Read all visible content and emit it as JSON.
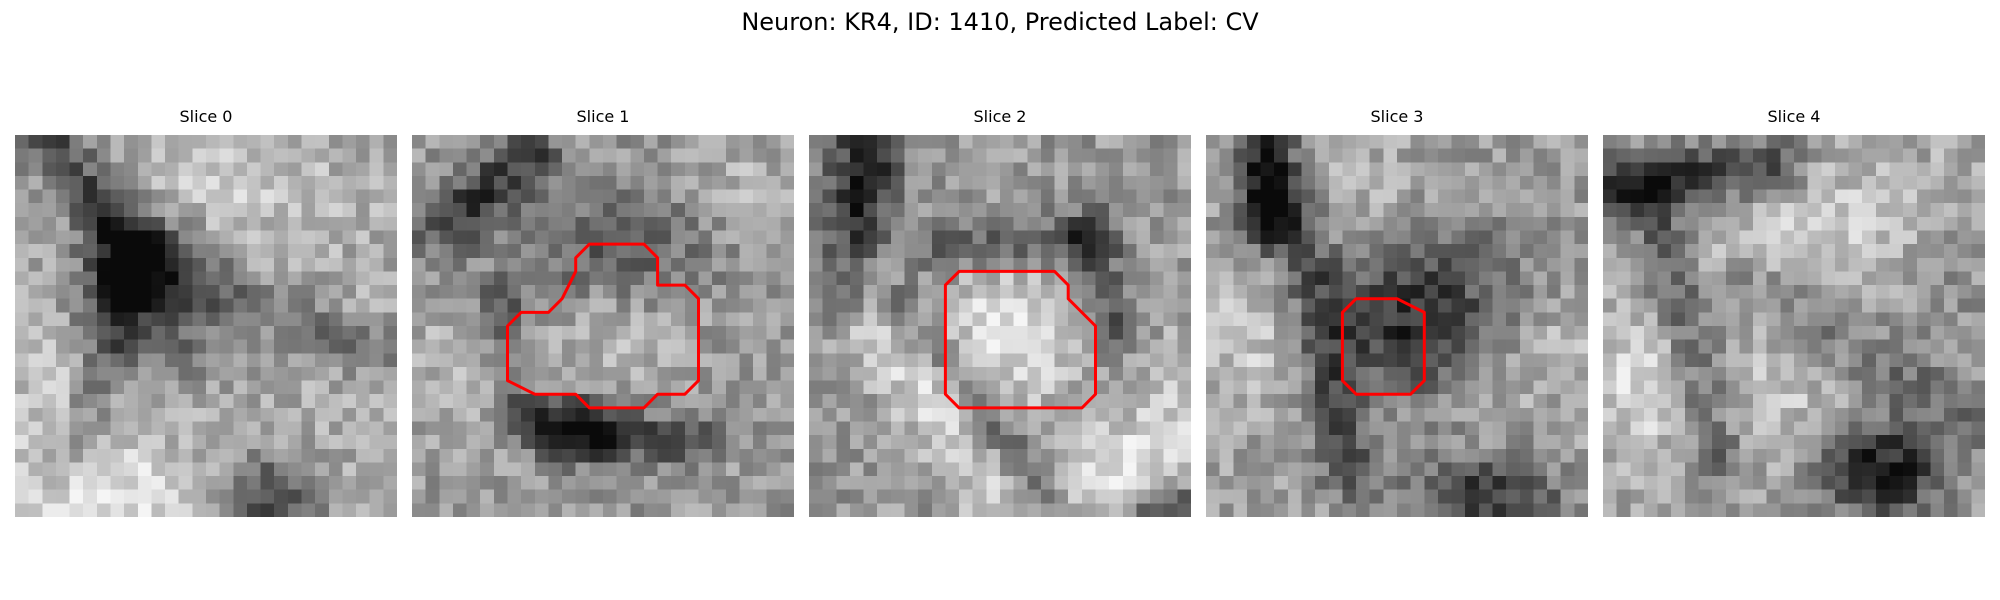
{
  "figure": {
    "title": "Neuron: KR4, ID: 1410, Predicted Label: CV"
  },
  "slices": [
    {
      "label": "Slice 0",
      "has_roi": false,
      "roi_color": "#ff0000"
    },
    {
      "label": "Slice 1",
      "has_roi": true,
      "roi_color": "#ff0000"
    },
    {
      "label": "Slice 2",
      "has_roi": true,
      "roi_color": "#ff0000"
    },
    {
      "label": "Slice 3",
      "has_roi": true,
      "roi_color": "#ff0000"
    },
    {
      "label": "Slice 4",
      "has_roi": false,
      "roi_color": "#ff0000"
    }
  ],
  "colors": {
    "colormap": "grayscale",
    "roi_outline": "#ff0000",
    "background": "#ffffff"
  }
}
